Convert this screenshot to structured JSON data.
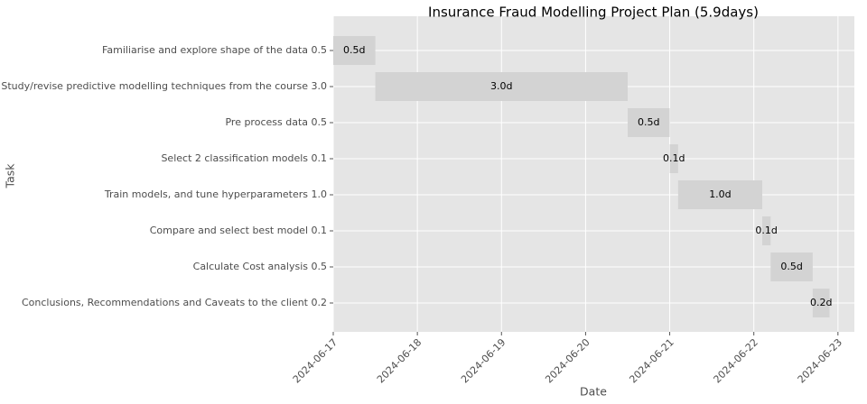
{
  "chart_data": {
    "type": "gantt",
    "title": "Insurance Fraud Modelling Project Plan (5.9days)",
    "x_label": "Date",
    "y_label": "Task",
    "categories": [
      "Familiarise and explore shape of the data 0.5",
      "Study/revise predictive modelling techniques from the course 3.0",
      "Pre process data 0.5",
      "Select 2 classification models 0.1",
      "Train models, and tune hyperparameters 1.0",
      "Compare and select best model 0.1",
      "Calculate Cost analysis 0.5",
      "Conclusions, Recommendations and Caveats to the client 0.2"
    ],
    "start": "2024-06-17",
    "values": [
      0.5,
      3.0,
      0.5,
      0.1,
      1.0,
      0.1,
      0.5,
      0.2
    ],
    "value_labels": [
      "0.5d",
      "3.0d",
      "0.5d",
      "0.1d",
      "1.0d",
      "0.1d",
      "0.5d",
      "0.2d"
    ],
    "color": "#d3d3d3",
    "xlim": [
      "2024-06-17",
      "2024-06-23T04:41"
    ],
    "xticks": [
      "2024-06-17",
      "2024-06-18",
      "2024-06-19",
      "2024-06-20",
      "2024-06-21",
      "2024-06-22",
      "2024-06-23"
    ],
    "grid": true
  }
}
